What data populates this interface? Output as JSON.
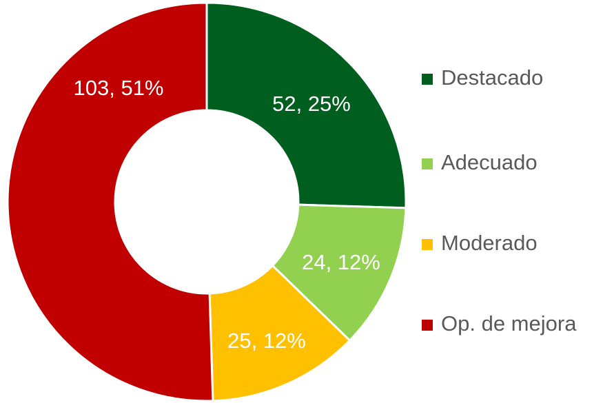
{
  "chart_data": {
    "type": "donut",
    "categories": [
      "Destacado",
      "Adecuado",
      "Moderado",
      "Op. de mejora"
    ],
    "values": [
      52,
      24,
      25,
      103
    ],
    "value_labels": [
      "52, 25%",
      "24, 12%",
      "25, 12%",
      "103, 51%"
    ],
    "colors": [
      "#005f1f",
      "#92d050",
      "#ffc000",
      "#c00000"
    ],
    "legend": "right"
  }
}
